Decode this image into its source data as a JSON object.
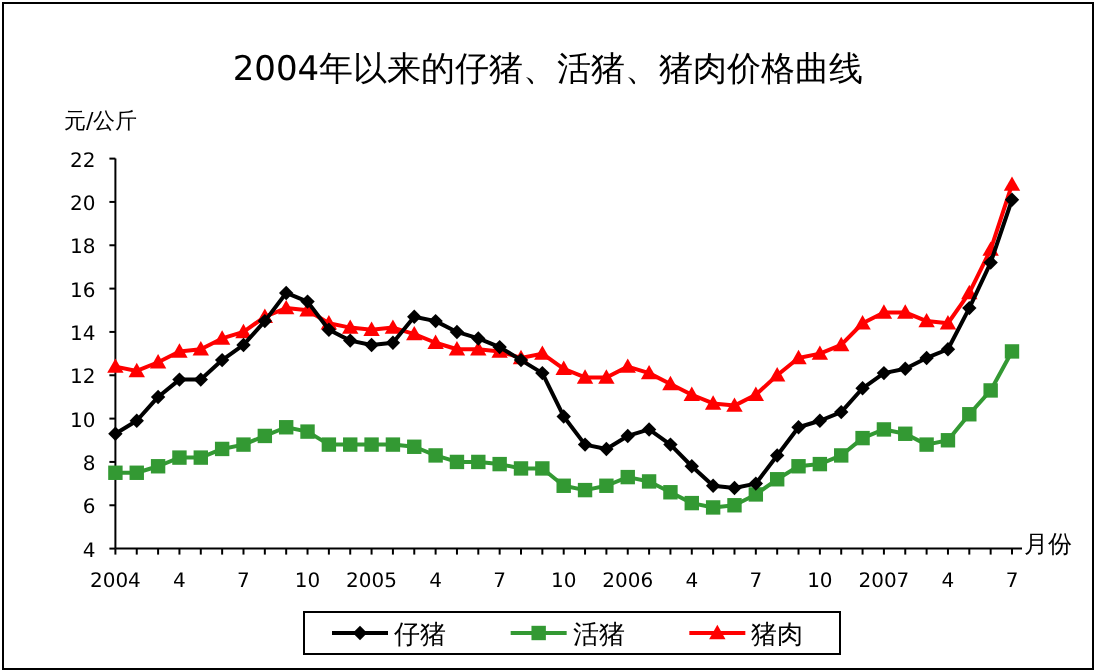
{
  "chart_data": {
    "type": "line",
    "title": "2004年以来的仔猪、活猪、猪肉价格曲线",
    "ylabel": "元/公斤",
    "xlabel": "月份",
    "categories": [
      "2004",
      null,
      null,
      "4",
      null,
      null,
      "7",
      null,
      null,
      "10",
      null,
      null,
      "2005",
      null,
      null,
      "4",
      null,
      null,
      "7",
      null,
      null,
      "10",
      null,
      null,
      "2006",
      null,
      null,
      "4",
      null,
      null,
      "7",
      null,
      null,
      "10",
      null,
      null,
      "2007",
      null,
      null,
      "4",
      null,
      null,
      "7"
    ],
    "ylim": [
      4,
      22
    ],
    "yticks": [
      4,
      6,
      8,
      10,
      12,
      14,
      16,
      18,
      20,
      22
    ],
    "legend": "bottom",
    "series": [
      {
        "name": "仔猪",
        "color": "#000000",
        "marker": "diamond",
        "values": [
          9.3,
          9.9,
          11.0,
          11.8,
          11.8,
          12.7,
          13.4,
          14.5,
          15.8,
          15.4,
          14.1,
          13.6,
          13.4,
          13.5,
          14.7,
          14.5,
          14.0,
          13.7,
          13.3,
          12.7,
          12.1,
          10.1,
          8.8,
          8.6,
          9.2,
          9.5,
          8.8,
          7.8,
          6.9,
          6.8,
          7.0,
          8.3,
          9.6,
          9.9,
          10.3,
          11.4,
          12.1,
          12.3,
          12.8,
          13.2,
          15.1,
          17.2,
          20.1
        ]
      },
      {
        "name": "活猪",
        "color": "#339933",
        "marker": "square",
        "values": [
          7.5,
          7.5,
          7.8,
          8.2,
          8.2,
          8.6,
          8.8,
          9.2,
          9.6,
          9.4,
          8.8,
          8.8,
          8.8,
          8.8,
          8.7,
          8.3,
          8.0,
          8.0,
          7.9,
          7.7,
          7.7,
          6.9,
          6.7,
          6.9,
          7.3,
          7.1,
          6.6,
          6.1,
          5.9,
          6.0,
          6.5,
          7.2,
          7.8,
          7.9,
          8.3,
          9.1,
          9.5,
          9.3,
          8.8,
          9.0,
          10.2,
          11.3,
          13.1
        ]
      },
      {
        "name": "猪肉",
        "color": "#ff0000",
        "marker": "triangle",
        "values": [
          12.4,
          12.2,
          12.6,
          13.1,
          13.2,
          13.7,
          14.0,
          14.7,
          15.1,
          15.0,
          14.4,
          14.2,
          14.1,
          14.2,
          13.9,
          13.5,
          13.2,
          13.2,
          13.1,
          12.8,
          13.0,
          12.3,
          11.9,
          11.9,
          12.4,
          12.1,
          11.6,
          11.1,
          10.7,
          10.6,
          11.1,
          12.0,
          12.8,
          13.0,
          13.4,
          14.4,
          14.9,
          14.9,
          14.5,
          14.4,
          15.8,
          17.8,
          20.8
        ]
      }
    ]
  }
}
